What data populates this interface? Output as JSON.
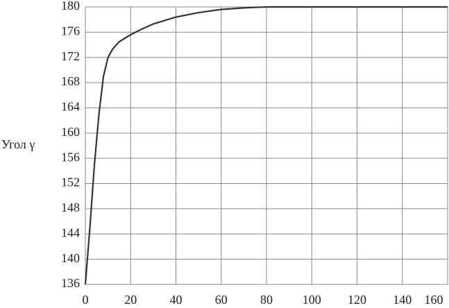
{
  "chart_data": {
    "type": "line",
    "y_label": "Угол γ",
    "x": [
      0,
      2,
      4,
      6,
      8,
      10,
      12,
      15,
      20,
      25,
      30,
      40,
      50,
      60,
      70,
      80,
      100,
      120,
      140,
      160
    ],
    "series": [
      {
        "color": "#333333",
        "values": [
          136,
          145,
          155,
          163,
          169,
          172,
          173.3,
          174.5,
          175.6,
          176.5,
          177.3,
          178.4,
          179.1,
          179.6,
          179.85,
          180,
          180,
          180,
          180,
          180
        ]
      }
    ],
    "xlim": [
      0,
      160
    ],
    "xticks": [
      0,
      20,
      40,
      60,
      80,
      100,
      120,
      140,
      160
    ],
    "ylim": [
      136,
      180
    ],
    "yticks": [
      136,
      140,
      144,
      148,
      152,
      156,
      160,
      164,
      168,
      172,
      176,
      180
    ],
    "grid": true
  }
}
